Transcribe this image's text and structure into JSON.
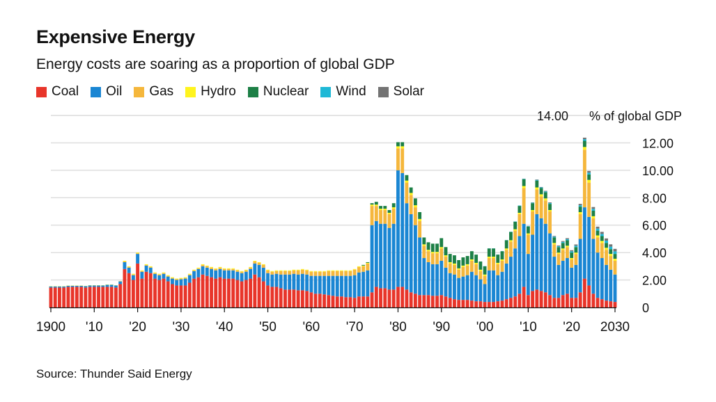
{
  "chart_data": {
    "type": "bar",
    "stacked": true,
    "title": "Expensive Energy",
    "subtitle": "Energy costs are soaring as a proportion of global GDP",
    "source": "Source: Thunder Said Energy",
    "unit_label": "% of global GDP",
    "ylim": [
      0,
      14
    ],
    "y_ticks": [
      0,
      2,
      4,
      6,
      8,
      10,
      12,
      14
    ],
    "y_tick_labels": [
      "0",
      "2.00",
      "4.00",
      "6.00",
      "8.00",
      "10.00",
      "12.00",
      "14.00"
    ],
    "x_ticks": [
      1900,
      1910,
      1920,
      1930,
      1940,
      1950,
      1960,
      1970,
      1980,
      1990,
      2000,
      2010,
      2020,
      2030
    ],
    "x_tick_labels": [
      "1900",
      "'10",
      "'20",
      "'30",
      "'40",
      "'50",
      "'60",
      "'70",
      "'80",
      "'90",
      "'00",
      "'10",
      "'20",
      "2030"
    ],
    "grid": true,
    "legend_position": "top-left",
    "x_start": 1900,
    "series": [
      {
        "name": "Coal",
        "color": "#e8352a",
        "values": [
          1.45,
          1.45,
          1.45,
          1.45,
          1.5,
          1.5,
          1.5,
          1.5,
          1.45,
          1.5,
          1.5,
          1.5,
          1.5,
          1.5,
          1.5,
          1.45,
          1.7,
          2.8,
          2.5,
          2.0,
          3.2,
          2.1,
          2.6,
          2.5,
          2.1,
          2.0,
          2.1,
          1.9,
          1.7,
          1.6,
          1.6,
          1.6,
          1.8,
          2.1,
          2.2,
          2.4,
          2.3,
          2.2,
          2.1,
          2.2,
          2.1,
          2.1,
          2.1,
          2.0,
          1.9,
          2.0,
          2.1,
          2.4,
          2.2,
          1.9,
          1.6,
          1.5,
          1.5,
          1.4,
          1.3,
          1.3,
          1.3,
          1.25,
          1.25,
          1.2,
          1.1,
          1.0,
          1.0,
          0.95,
          0.9,
          0.85,
          0.8,
          0.8,
          0.75,
          0.75,
          0.7,
          0.8,
          0.8,
          0.8,
          1.1,
          1.5,
          1.4,
          1.4,
          1.3,
          1.3,
          1.5,
          1.5,
          1.3,
          1.1,
          1.0,
          0.9,
          0.9,
          0.9,
          0.85,
          0.85,
          0.9,
          0.8,
          0.7,
          0.6,
          0.55,
          0.55,
          0.55,
          0.5,
          0.45,
          0.45,
          0.4,
          0.4,
          0.4,
          0.45,
          0.5,
          0.6,
          0.7,
          0.8,
          1.0,
          1.5,
          0.9,
          1.2,
          1.3,
          1.2,
          1.1,
          0.9,
          0.7,
          0.7,
          0.9,
          1.0,
          0.7,
          0.7,
          1.1,
          2.1,
          1.6,
          1.0,
          0.7,
          0.6,
          0.5,
          0.45,
          0.4
        ]
      },
      {
        "name": "Oil",
        "color": "#1a86d3",
        "values": [
          0.08,
          0.08,
          0.08,
          0.08,
          0.08,
          0.08,
          0.08,
          0.08,
          0.1,
          0.1,
          0.1,
          0.1,
          0.1,
          0.15,
          0.15,
          0.15,
          0.2,
          0.5,
          0.4,
          0.35,
          0.7,
          0.5,
          0.45,
          0.4,
          0.35,
          0.35,
          0.35,
          0.35,
          0.4,
          0.4,
          0.45,
          0.5,
          0.55,
          0.55,
          0.6,
          0.6,
          0.6,
          0.6,
          0.6,
          0.6,
          0.6,
          0.6,
          0.6,
          0.6,
          0.6,
          0.6,
          0.7,
          0.8,
          0.9,
          1.0,
          0.9,
          0.9,
          0.95,
          1.0,
          1.1,
          1.1,
          1.15,
          1.15,
          1.2,
          1.2,
          1.2,
          1.3,
          1.3,
          1.35,
          1.4,
          1.45,
          1.5,
          1.5,
          1.55,
          1.55,
          1.65,
          1.75,
          1.8,
          1.9,
          4.9,
          4.8,
          4.7,
          4.7,
          4.5,
          4.8,
          8.5,
          8.3,
          6.3,
          5.7,
          5.0,
          4.2,
          2.7,
          2.4,
          2.3,
          2.3,
          2.5,
          2.1,
          1.8,
          1.8,
          1.6,
          1.7,
          1.8,
          2.1,
          1.9,
          1.6,
          1.3,
          2.3,
          2.3,
          1.9,
          2.1,
          2.6,
          3.0,
          3.5,
          4.2,
          4.6,
          3.0,
          4.1,
          5.5,
          5.3,
          5.0,
          4.5,
          3.0,
          2.4,
          2.5,
          2.6,
          2.2,
          2.4,
          3.9,
          5.2,
          5.0,
          4.0,
          3.3,
          3.0,
          2.6,
          2.3,
          2.0
        ]
      },
      {
        "name": "Gas",
        "color": "#f5b73c",
        "values": [
          0,
          0,
          0,
          0,
          0,
          0,
          0,
          0,
          0,
          0,
          0,
          0,
          0,
          0,
          0,
          0,
          0,
          0.05,
          0.05,
          0.05,
          0.05,
          0.05,
          0.05,
          0.05,
          0.05,
          0.05,
          0.05,
          0.05,
          0.05,
          0.05,
          0.05,
          0.05,
          0.05,
          0.05,
          0.05,
          0.1,
          0.1,
          0.1,
          0.1,
          0.1,
          0.1,
          0.1,
          0.1,
          0.1,
          0.1,
          0.1,
          0.1,
          0.15,
          0.15,
          0.2,
          0.2,
          0.2,
          0.2,
          0.25,
          0.25,
          0.25,
          0.25,
          0.3,
          0.3,
          0.3,
          0.3,
          0.3,
          0.3,
          0.3,
          0.35,
          0.35,
          0.35,
          0.35,
          0.35,
          0.35,
          0.4,
          0.4,
          0.4,
          0.5,
          1.4,
          1.1,
          1.0,
          1.0,
          1.0,
          1.1,
          1.6,
          1.8,
          1.5,
          1.4,
          1.3,
          1.2,
          0.9,
          0.8,
          0.8,
          0.8,
          0.9,
          0.8,
          0.7,
          0.7,
          0.6,
          0.7,
          0.7,
          0.8,
          0.8,
          0.6,
          0.6,
          0.9,
          0.9,
          0.8,
          0.8,
          1.0,
          1.1,
          1.3,
          1.6,
          2.6,
          1.4,
          1.7,
          1.8,
          1.6,
          1.7,
          1.6,
          0.9,
          0.8,
          0.8,
          0.8,
          0.6,
          0.8,
          1.8,
          4.2,
          2.5,
          1.5,
          1.1,
          1.1,
          1.1,
          1.0,
          1.0
        ]
      },
      {
        "name": "Hydro",
        "color": "#fff41e",
        "values": [
          0.02,
          0.02,
          0.02,
          0.02,
          0.02,
          0.02,
          0.02,
          0.02,
          0.02,
          0.02,
          0.02,
          0.02,
          0.02,
          0.02,
          0.02,
          0.02,
          0.02,
          0.05,
          0.05,
          0.05,
          0.05,
          0.05,
          0.05,
          0.05,
          0.05,
          0.05,
          0.05,
          0.05,
          0.05,
          0.05,
          0.05,
          0.05,
          0.05,
          0.05,
          0.05,
          0.05,
          0.05,
          0.05,
          0.05,
          0.05,
          0.05,
          0.05,
          0.05,
          0.05,
          0.05,
          0.05,
          0.05,
          0.05,
          0.05,
          0.05,
          0.05,
          0.05,
          0.05,
          0.05,
          0.05,
          0.05,
          0.05,
          0.05,
          0.05,
          0.05,
          0.05,
          0.05,
          0.05,
          0.05,
          0.05,
          0.05,
          0.05,
          0.05,
          0.05,
          0.05,
          0.05,
          0.05,
          0.05,
          0.05,
          0.1,
          0.1,
          0.1,
          0.1,
          0.1,
          0.1,
          0.15,
          0.15,
          0.15,
          0.15,
          0.15,
          0.15,
          0.1,
          0.1,
          0.1,
          0.1,
          0.1,
          0.1,
          0.1,
          0.1,
          0.1,
          0.1,
          0.1,
          0.1,
          0.1,
          0.1,
          0.1,
          0.1,
          0.1,
          0.1,
          0.1,
          0.1,
          0.1,
          0.1,
          0.1,
          0.15,
          0.1,
          0.1,
          0.15,
          0.15,
          0.15,
          0.1,
          0.1,
          0.1,
          0.1,
          0.1,
          0.1,
          0.1,
          0.15,
          0.2,
          0.2,
          0.15,
          0.15,
          0.15,
          0.15,
          0.15,
          0.15
        ]
      },
      {
        "name": "Nuclear",
        "color": "#1d8046",
        "values": [
          0,
          0,
          0,
          0,
          0,
          0,
          0,
          0,
          0,
          0,
          0,
          0,
          0,
          0,
          0,
          0,
          0,
          0,
          0,
          0,
          0,
          0,
          0,
          0,
          0,
          0,
          0,
          0,
          0,
          0,
          0,
          0,
          0,
          0,
          0,
          0,
          0,
          0,
          0,
          0,
          0,
          0,
          0,
          0,
          0,
          0,
          0,
          0,
          0,
          0,
          0,
          0,
          0,
          0,
          0,
          0,
          0,
          0,
          0,
          0,
          0,
          0,
          0,
          0,
          0,
          0,
          0,
          0,
          0,
          0,
          0,
          0,
          0.05,
          0.05,
          0.1,
          0.2,
          0.2,
          0.2,
          0.2,
          0.3,
          0.3,
          0.3,
          0.4,
          0.4,
          0.5,
          0.5,
          0.5,
          0.55,
          0.6,
          0.6,
          0.65,
          0.6,
          0.6,
          0.6,
          0.6,
          0.6,
          0.6,
          0.6,
          0.6,
          0.6,
          0.6,
          0.6,
          0.6,
          0.6,
          0.6,
          0.6,
          0.6,
          0.55,
          0.5,
          0.5,
          0.5,
          0.5,
          0.5,
          0.45,
          0.45,
          0.45,
          0.4,
          0.4,
          0.4,
          0.4,
          0.4,
          0.4,
          0.4,
          0.45,
          0.4,
          0.4,
          0.35,
          0.35,
          0.35,
          0.35,
          0.35
        ]
      },
      {
        "name": "Wind",
        "color": "#1fb8d6",
        "values": [
          0,
          0,
          0,
          0,
          0,
          0,
          0,
          0,
          0,
          0,
          0,
          0,
          0,
          0,
          0,
          0,
          0,
          0,
          0,
          0,
          0,
          0,
          0,
          0,
          0,
          0,
          0,
          0,
          0,
          0,
          0,
          0,
          0,
          0,
          0,
          0,
          0,
          0,
          0,
          0,
          0,
          0,
          0,
          0,
          0,
          0,
          0,
          0,
          0,
          0,
          0,
          0,
          0,
          0,
          0,
          0,
          0,
          0,
          0,
          0,
          0,
          0,
          0,
          0,
          0,
          0,
          0,
          0,
          0,
          0,
          0,
          0,
          0,
          0,
          0,
          0,
          0,
          0,
          0,
          0,
          0,
          0,
          0,
          0,
          0,
          0,
          0,
          0,
          0,
          0,
          0,
          0,
          0,
          0,
          0,
          0,
          0,
          0,
          0,
          0,
          0.01,
          0.01,
          0.01,
          0.01,
          0.01,
          0.01,
          0.02,
          0.02,
          0.03,
          0.03,
          0.03,
          0.04,
          0.05,
          0.05,
          0.06,
          0.06,
          0.06,
          0.07,
          0.08,
          0.08,
          0.09,
          0.1,
          0.1,
          0.12,
          0.13,
          0.14,
          0.15,
          0.16,
          0.17,
          0.18,
          0.19
        ]
      },
      {
        "name": "Solar",
        "color": "#737373",
        "values": [
          0,
          0,
          0,
          0,
          0,
          0,
          0,
          0,
          0,
          0,
          0,
          0,
          0,
          0,
          0,
          0,
          0,
          0,
          0,
          0,
          0,
          0,
          0,
          0,
          0,
          0,
          0,
          0,
          0,
          0,
          0,
          0,
          0,
          0,
          0,
          0,
          0,
          0,
          0,
          0,
          0,
          0,
          0,
          0,
          0,
          0,
          0,
          0,
          0,
          0,
          0,
          0,
          0,
          0,
          0,
          0,
          0,
          0,
          0,
          0,
          0,
          0,
          0,
          0,
          0,
          0,
          0,
          0,
          0,
          0,
          0,
          0,
          0,
          0,
          0,
          0,
          0,
          0,
          0,
          0,
          0,
          0,
          0,
          0,
          0,
          0,
          0,
          0,
          0,
          0,
          0,
          0,
          0,
          0,
          0,
          0,
          0,
          0,
          0,
          0,
          0,
          0,
          0,
          0,
          0,
          0,
          0,
          0,
          0,
          0.01,
          0.01,
          0.02,
          0.03,
          0.03,
          0.04,
          0.05,
          0.05,
          0.05,
          0.06,
          0.07,
          0.08,
          0.09,
          0.1,
          0.11,
          0.12,
          0.13,
          0.14,
          0.15,
          0.16,
          0.17,
          0.18
        ]
      }
    ]
  }
}
